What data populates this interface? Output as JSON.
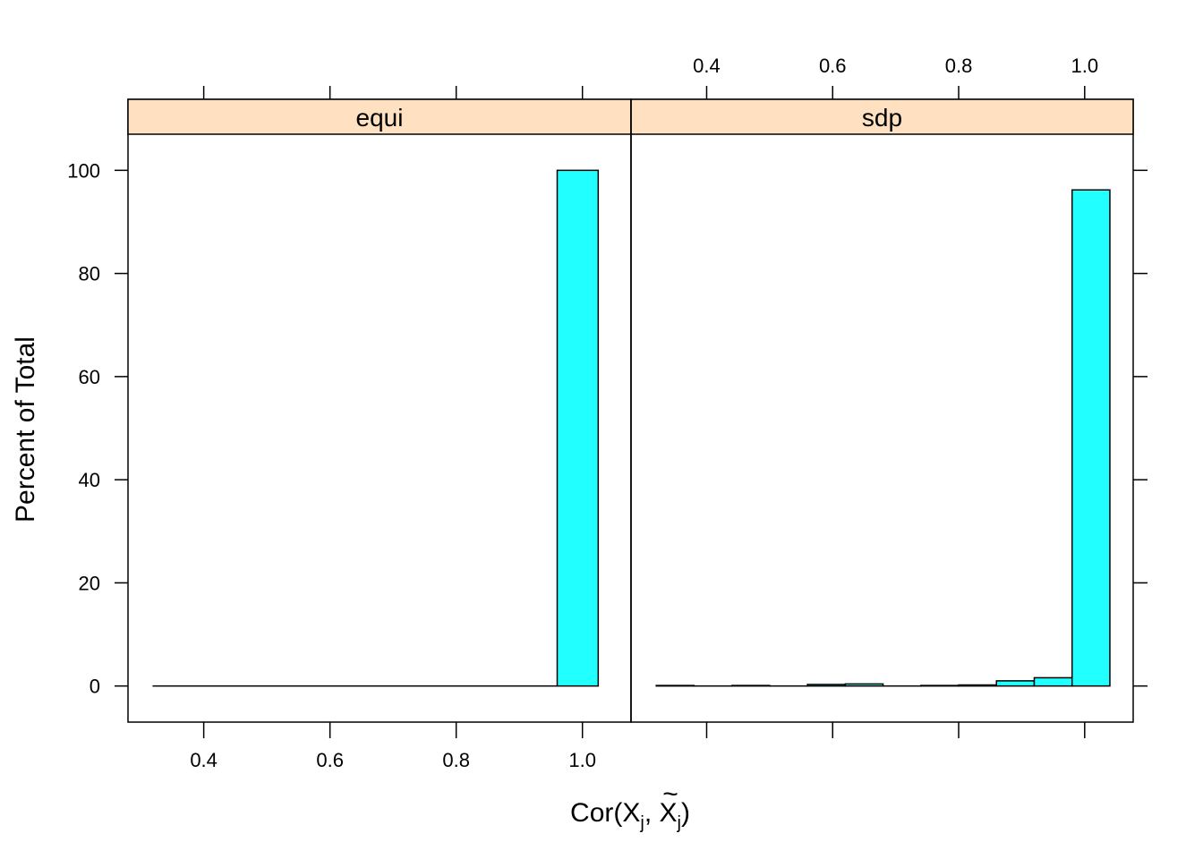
{
  "chart_data": {
    "type": "bar",
    "ylabel": "Percent of Total",
    "xlabel": {
      "prefix": "Cor(X",
      "sub": "j",
      "mid": ", X",
      "tilde": "~",
      "sub2": "j",
      "suffix": ")"
    },
    "xlim": [
      0.28,
      1.077
    ],
    "ylim": [
      -7,
      107
    ],
    "x_ticks": [
      "0.4",
      "0.6",
      "0.8",
      "1.0"
    ],
    "y_ticks": [
      "0",
      "20",
      "40",
      "60",
      "80",
      "100"
    ],
    "strip_color": "#ffe0c0",
    "bar_color": "#22ffff",
    "panels": [
      {
        "name": "equi",
        "bins": [
          {
            "x0": 0.32,
            "x1": 0.96,
            "value": 0
          },
          {
            "x0": 0.96,
            "x1": 1.025,
            "value": 100
          }
        ]
      },
      {
        "name": "sdp",
        "bins": [
          {
            "x0": 0.32,
            "x1": 0.38,
            "value": 0.1
          },
          {
            "x0": 0.38,
            "x1": 0.44,
            "value": 0
          },
          {
            "x0": 0.44,
            "x1": 0.5,
            "value": 0.1
          },
          {
            "x0": 0.5,
            "x1": 0.56,
            "value": 0
          },
          {
            "x0": 0.56,
            "x1": 0.62,
            "value": 0.3
          },
          {
            "x0": 0.62,
            "x1": 0.68,
            "value": 0.4
          },
          {
            "x0": 0.68,
            "x1": 0.74,
            "value": 0
          },
          {
            "x0": 0.74,
            "x1": 0.8,
            "value": 0.1
          },
          {
            "x0": 0.8,
            "x1": 0.86,
            "value": 0.2
          },
          {
            "x0": 0.86,
            "x1": 0.92,
            "value": 1.0
          },
          {
            "x0": 0.92,
            "x1": 0.98,
            "value": 1.6
          },
          {
            "x0": 0.98,
            "x1": 1.04,
            "value": 96.2
          }
        ]
      }
    ]
  }
}
